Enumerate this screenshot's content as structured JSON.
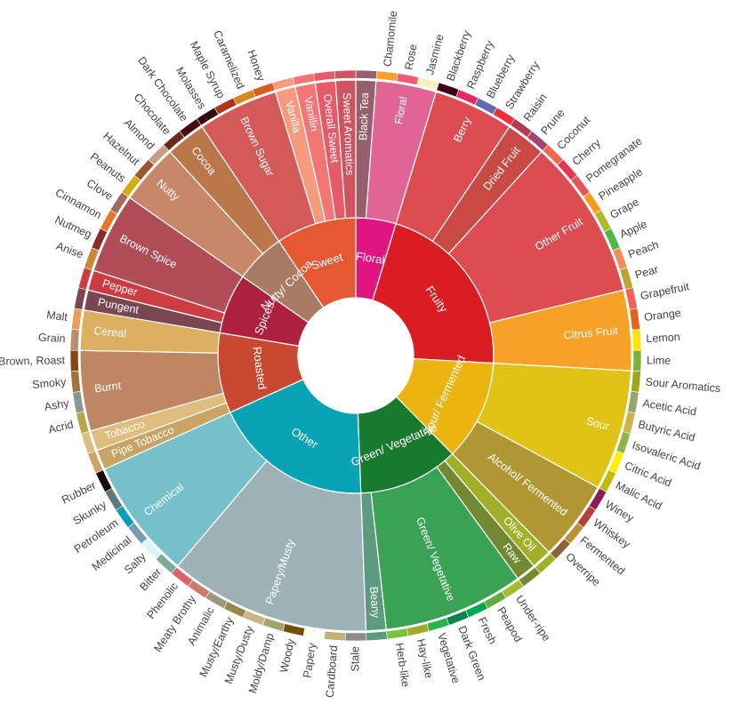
{
  "chart_data": {
    "type": "sunburst",
    "nodes": [
      {
        "name": "Floral",
        "color": "#e0157f",
        "children": [
          {
            "name": "Black Tea",
            "color": "#975e6d",
            "value": 1
          },
          {
            "name": "Floral",
            "color": "#e16594",
            "children": [
              {
                "name": "Chamomile",
                "color": "#f7a128",
                "value": 1
              },
              {
                "name": "Rose",
                "color": "#ef5a78",
                "value": 1
              },
              {
                "name": "Jasmine",
                "color": "#f7f1bd",
                "value": 1
              }
            ]
          }
        ]
      },
      {
        "name": "Fruity",
        "color": "#da1d23",
        "children": [
          {
            "name": "Berry",
            "color": "#dd4c51",
            "children": [
              {
                "name": "Blackberry",
                "color": "#3e0317",
                "value": 1
              },
              {
                "name": "Raspberry",
                "color": "#e62969",
                "value": 1
              },
              {
                "name": "Blueberry",
                "color": "#6569b0",
                "value": 1
              },
              {
                "name": "Strawberry",
                "color": "#ef2d36",
                "value": 1
              }
            ]
          },
          {
            "name": "Dried Fruit",
            "color": "#c94a44",
            "children": [
              {
                "name": "Raisin",
                "color": "#b53b54",
                "value": 1
              },
              {
                "name": "Prune",
                "color": "#a5446f",
                "value": 1
              }
            ]
          },
          {
            "name": "Other Fruit",
            "color": "#dd4c51",
            "children": [
              {
                "name": "Coconut",
                "color": "#f2684b",
                "value": 1
              },
              {
                "name": "Cherry",
                "color": "#e73451",
                "value": 1
              },
              {
                "name": "Pomegranate",
                "color": "#e65656",
                "value": 1
              },
              {
                "name": "Pineapple",
                "color": "#f89a1c",
                "value": 1
              },
              {
                "name": "Grape",
                "color": "#aeb92c",
                "value": 1
              },
              {
                "name": "Apple",
                "color": "#4eb849",
                "value": 1
              },
              {
                "name": "Peach",
                "color": "#f68a5c",
                "value": 1
              },
              {
                "name": "Pear",
                "color": "#baa635",
                "value": 1
              }
            ]
          },
          {
            "name": "Citrus Fruit",
            "color": "#f7a128",
            "children": [
              {
                "name": "Grapefruit",
                "color": "#f26355",
                "value": 1
              },
              {
                "name": "Orange",
                "color": "#e2631e",
                "value": 1
              },
              {
                "name": "Lemon",
                "color": "#fde404",
                "value": 1
              },
              {
                "name": "Lime",
                "color": "#7eb138",
                "value": 1
              }
            ]
          }
        ]
      },
      {
        "name": "Sour/ Fermented",
        "color": "#ebb40f",
        "children": [
          {
            "name": "Sour",
            "color": "#e1c315",
            "children": [
              {
                "name": "Sour Aromatics",
                "color": "#9ea718",
                "value": 1
              },
              {
                "name": "Acetic Acid",
                "color": "#94a76f",
                "value": 1
              },
              {
                "name": "Butyric Acid",
                "color": "#d0b24f",
                "value": 1
              },
              {
                "name": "Isovaleric Acid",
                "color": "#8eb646",
                "value": 1
              },
              {
                "name": "Citric Acid",
                "color": "#faef07",
                "value": 1
              },
              {
                "name": "Malic Acid",
                "color": "#c1ba07",
                "value": 1
              }
            ]
          },
          {
            "name": "Alcohol/ Fermented",
            "color": "#b09733",
            "children": [
              {
                "name": "Winey",
                "color": "#8f1c53",
                "value": 1
              },
              {
                "name": "Whiskey",
                "color": "#b34039",
                "value": 1
              },
              {
                "name": "Fermented",
                "color": "#ba9232",
                "value": 1
              },
              {
                "name": "Overripe",
                "color": "#8b6439",
                "value": 1
              }
            ]
          }
        ]
      },
      {
        "name": "Green/ Vegetative",
        "color": "#187a2f",
        "children": [
          {
            "name": "Olive Oil",
            "color": "#a2b029",
            "value": 1
          },
          {
            "name": "Raw",
            "color": "#718933",
            "value": 1
          },
          {
            "name": "Green/ Vegetative",
            "color": "#3aa255",
            "children": [
              {
                "name": "Under-ripe",
                "color": "#a2bb2b",
                "value": 1
              },
              {
                "name": "Peapod",
                "color": "#62aa3c",
                "value": 1
              },
              {
                "name": "Fresh",
                "color": "#03a653",
                "value": 1
              },
              {
                "name": "Dark Green",
                "color": "#038549",
                "value": 1
              },
              {
                "name": "Vegetative",
                "color": "#28b44b",
                "value": 1
              },
              {
                "name": "Hay-like",
                "color": "#a3a830",
                "value": 1
              },
              {
                "name": "Herb-like",
                "color": "#7ac141",
                "value": 1
              }
            ]
          },
          {
            "name": "Beany",
            "color": "#5e9a80",
            "value": 1
          }
        ]
      },
      {
        "name": "Other",
        "color": "#0aa3b5",
        "children": [
          {
            "name": "Papery/Musty",
            "color": "#9db2b7",
            "children": [
              {
                "name": "Stale",
                "color": "#8b8c90",
                "value": 1
              },
              {
                "name": "Cardboard",
                "color": "#beb276",
                "value": 1
              },
              {
                "name": "Papery",
                "color": "#fefef4",
                "value": 1
              },
              {
                "name": "Woody",
                "color": "#744e03",
                "value": 1
              },
              {
                "name": "Moldy/Damp",
                "color": "#a3a36f",
                "value": 1
              },
              {
                "name": "Musty/Dusty",
                "color": "#c9b583",
                "value": 1
              },
              {
                "name": "Musty/Earthy",
                "color": "#978847",
                "value": 1
              },
              {
                "name": "Animalic",
                "color": "#9d977f",
                "value": 1
              },
              {
                "name": "Meaty Brothy",
                "color": "#cc7b6a",
                "value": 1
              },
              {
                "name": "Phenolic",
                "color": "#db646a",
                "value": 1
              }
            ]
          },
          {
            "name": "Chemical",
            "color": "#76c0cb",
            "children": [
              {
                "name": "Bitter",
                "color": "#80a89d",
                "value": 1
              },
              {
                "name": "Salty",
                "color": "#def2fd",
                "value": 1
              },
              {
                "name": "Medicinal",
                "color": "#7a9bae",
                "value": 1
              },
              {
                "name": "Petroleum",
                "color": "#039fb8",
                "value": 1
              },
              {
                "name": "Skunky",
                "color": "#5e777b",
                "value": 1
              },
              {
                "name": "Rubber",
                "color": "#120c0c",
                "value": 1
              }
            ]
          }
        ]
      },
      {
        "name": "Roasted",
        "color": "#c94930",
        "children": [
          {
            "name": "Pipe Tobacco",
            "color": "#caa465",
            "value": 1
          },
          {
            "name": "Tobacco",
            "color": "#dfbd7e",
            "value": 1
          },
          {
            "name": "Burnt",
            "color": "#be8663",
            "children": [
              {
                "name": "Acrid",
                "color": "#b9a449",
                "value": 1
              },
              {
                "name": "Ashy",
                "color": "#899893",
                "value": 1
              },
              {
                "name": "Smoky",
                "color": "#a1743b",
                "value": 1
              },
              {
                "name": "Brown, Roast",
                "color": "#894810",
                "value": 1
              }
            ]
          },
          {
            "name": "Cereal",
            "color": "#ddaf61",
            "children": [
              {
                "name": "Grain",
                "color": "#b7906f",
                "value": 1
              },
              {
                "name": "Malt",
                "color": "#eb9d5f",
                "value": 1
              }
            ]
          }
        ]
      },
      {
        "name": "Spices",
        "color": "#ad213e",
        "children": [
          {
            "name": "Pungent",
            "color": "#794752",
            "value": 1
          },
          {
            "name": "Pepper",
            "color": "#cc3d41",
            "value": 1
          },
          {
            "name": "Brown Spice",
            "color": "#b14d57",
            "children": [
              {
                "name": "Anise",
                "color": "#c78936",
                "value": 1
              },
              {
                "name": "Nutmeg",
                "color": "#8c292c",
                "value": 1
              },
              {
                "name": "Cinnamon",
                "color": "#e5762e",
                "value": 1
              },
              {
                "name": "Clove",
                "color": "#a16c5a",
                "value": 1
              }
            ]
          }
        ]
      },
      {
        "name": "Nutty/ Cocoa",
        "color": "#a87b64",
        "children": [
          {
            "name": "Nutty",
            "color": "#c78869",
            "children": [
              {
                "name": "Peanuts",
                "color": "#d4ad12",
                "value": 1
              },
              {
                "name": "Hazelnut",
                "color": "#9d5433",
                "value": 1
              },
              {
                "name": "Almond",
                "color": "#c89f83",
                "value": 1
              }
            ]
          },
          {
            "name": "Cocoa",
            "color": "#bb764c",
            "children": [
              {
                "name": "Chocolate",
                "color": "#692a19",
                "value": 1
              },
              {
                "name": "Dark Chocolate",
                "color": "#470604",
                "value": 1
              }
            ]
          }
        ]
      },
      {
        "name": "Sweet",
        "color": "#e65832",
        "children": [
          {
            "name": "Brown Sugar",
            "color": "#d45a59",
            "children": [
              {
                "name": "Molasses",
                "color": "#310d0f",
                "value": 1
              },
              {
                "name": "Maple Syrup",
                "color": "#ae341f",
                "value": 1
              },
              {
                "name": "Caramelized",
                "color": "#d78823",
                "value": 1
              },
              {
                "name": "Honey",
                "color": "#da5c1f",
                "value": 1
              }
            ]
          },
          {
            "name": "Vanilla",
            "color": "#f89a80",
            "value": 1
          },
          {
            "name": "Vanillin",
            "color": "#f37674",
            "value": 1
          },
          {
            "name": "Overall Sweet",
            "color": "#e75b68",
            "value": 1
          },
          {
            "name": "Sweet Aromatics",
            "color": "#d0545f",
            "value": 1
          }
        ]
      }
    ]
  }
}
